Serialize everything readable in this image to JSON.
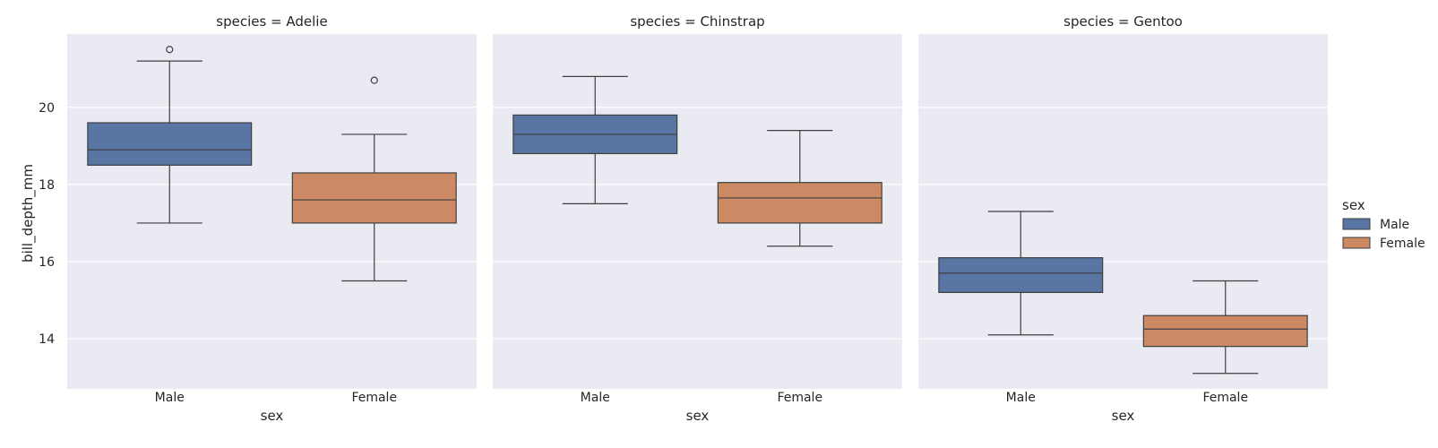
{
  "chart_data": {
    "type": "box",
    "ylabel": "bill_depth_mm",
    "xlabel": "sex",
    "ylim": [
      12.7,
      21.9
    ],
    "yticks": [
      14,
      16,
      18,
      20
    ],
    "categories": [
      "Male",
      "Female"
    ],
    "legend": {
      "title": "sex",
      "position": "right",
      "entries": [
        {
          "label": "Male",
          "color": "#5875a4"
        },
        {
          "label": "Female",
          "color": "#cc8963"
        }
      ]
    },
    "panels": [
      {
        "title": "species = Adelie",
        "boxes": [
          {
            "category": "Male",
            "whisker_low": 17.0,
            "q1": 18.5,
            "median": 18.9,
            "q3": 19.6,
            "whisker_high": 21.2,
            "outliers": [
              21.5
            ]
          },
          {
            "category": "Female",
            "whisker_low": 15.5,
            "q1": 17.0,
            "median": 17.6,
            "q3": 18.3,
            "whisker_high": 19.3,
            "outliers": [
              20.7
            ]
          }
        ]
      },
      {
        "title": "species = Chinstrap",
        "boxes": [
          {
            "category": "Male",
            "whisker_low": 17.5,
            "q1": 18.8,
            "median": 19.3,
            "q3": 19.8,
            "whisker_high": 20.8,
            "outliers": []
          },
          {
            "category": "Female",
            "whisker_low": 16.4,
            "q1": 17.0,
            "median": 17.65,
            "q3": 18.05,
            "whisker_high": 19.4,
            "outliers": []
          }
        ]
      },
      {
        "title": "species = Gentoo",
        "boxes": [
          {
            "category": "Male",
            "whisker_low": 14.1,
            "q1": 15.2,
            "median": 15.7,
            "q3": 16.1,
            "whisker_high": 17.3,
            "outliers": []
          },
          {
            "category": "Female",
            "whisker_low": 13.1,
            "q1": 13.8,
            "median": 14.25,
            "q3": 14.6,
            "whisker_high": 15.5,
            "outliers": []
          }
        ]
      }
    ],
    "grid": true
  }
}
